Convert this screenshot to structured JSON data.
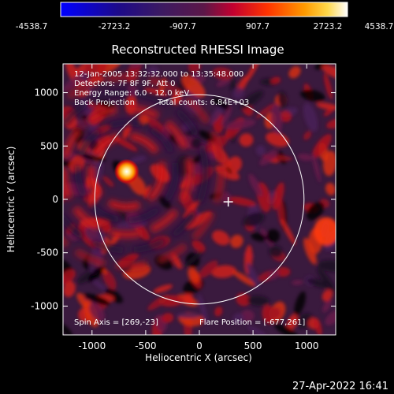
{
  "colorbar": {
    "tick_labels": [
      "-4538.7",
      "-2723.2",
      "-907.7",
      "907.7",
      "2723.2",
      "4538.7"
    ],
    "range": [
      -4538.7,
      4538.7
    ],
    "gradient_colors": [
      "#0000ff",
      "#2b0a6e",
      "#3b1d5c",
      "#5a1a50",
      "#c0003a",
      "#ff2a00",
      "#ff8a00",
      "#ffd23a",
      "#ffffff"
    ]
  },
  "plot": {
    "title": "Reconstructed RHESSI Image",
    "xlabel": "Heliocentric X (arcsec)",
    "ylabel": "Heliocentric Y (arcsec)",
    "xticks": [
      -1000,
      -500,
      0,
      500,
      1000
    ],
    "yticks": [
      -1000,
      -500,
      0,
      500,
      1000
    ],
    "xlim": [
      -1270,
      1270
    ],
    "ylim": [
      -1270,
      1270
    ],
    "solar_limb_radius_arcsec": 975,
    "source_position": [
      -677,
      261
    ],
    "crosshair_position": [
      269,
      -23
    ]
  },
  "info": {
    "line1": "12-Jan-2005 13:32:32.000 to 13:35:48.000",
    "line2": "Detectors: 7F 8F 9F, Att 0",
    "line3": "Energy Range: 6.0 - 12.0 keV",
    "line4a": "Back Projection",
    "line4b": "Total counts: 6.84E+03"
  },
  "footer": {
    "spin_axis": "Spin Axis = [269,-23]",
    "flare_position": "Flare Position = [-677,261]",
    "timestamp": "27-Apr-2022 16:41"
  }
}
